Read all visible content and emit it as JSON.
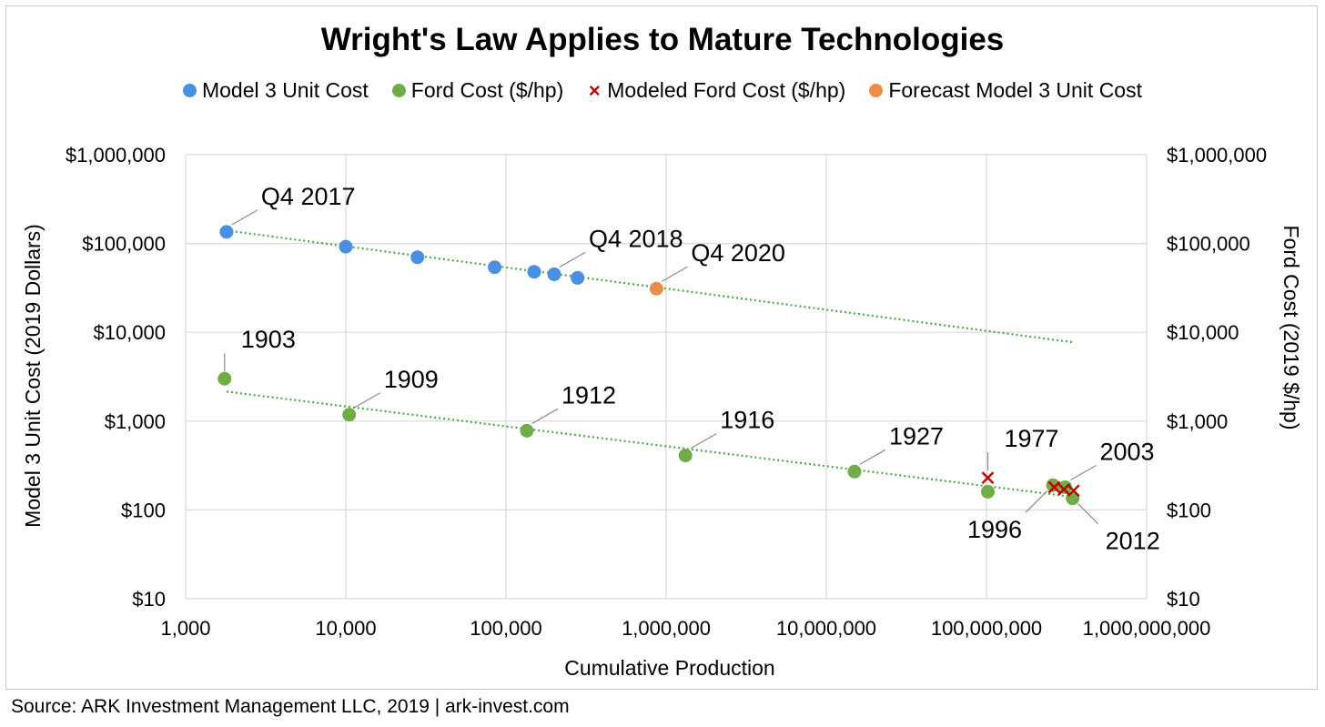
{
  "chart_data": {
    "type": "scatter",
    "title": "Wright's Law Applies to Mature Technologies",
    "xlabel": "Cumulative Production",
    "ylabel": "Model 3 Unit Cost (2019 Dollars)",
    "y2label": "Ford Cost (2019 $/hp)",
    "x_scale": "log",
    "y_scale": "log",
    "xlim": [
      1000,
      1000000000
    ],
    "ylim": [
      10,
      1000000
    ],
    "grid": true,
    "legend_position": "top",
    "x_ticks": [
      {
        "value": 1000,
        "label": "1,000"
      },
      {
        "value": 10000,
        "label": "10,000"
      },
      {
        "value": 100000,
        "label": "100,000"
      },
      {
        "value": 1000000,
        "label": "1,000,000"
      },
      {
        "value": 10000000,
        "label": "10,000,000"
      },
      {
        "value": 100000000,
        "label": "100,000,000"
      },
      {
        "value": 1000000000,
        "label": "1,000,000,000"
      }
    ],
    "y_ticks": [
      {
        "value": 10,
        "label": "$10"
      },
      {
        "value": 100,
        "label": "$100"
      },
      {
        "value": 1000,
        "label": "$1,000"
      },
      {
        "value": 10000,
        "label": "$10,000"
      },
      {
        "value": 100000,
        "label": "$100,000"
      },
      {
        "value": 1000000,
        "label": "$1,000,000"
      }
    ],
    "series": [
      {
        "name": "Model 3 Unit Cost",
        "color": "#4a90e2",
        "marker": "circle",
        "points": [
          {
            "x": 1800,
            "y": 135000
          },
          {
            "x": 10000,
            "y": 92000
          },
          {
            "x": 28000,
            "y": 70000
          },
          {
            "x": 85000,
            "y": 54000
          },
          {
            "x": 150000,
            "y": 48000
          },
          {
            "x": 200000,
            "y": 45000
          },
          {
            "x": 280000,
            "y": 41000
          }
        ]
      },
      {
        "name": "Ford Cost ($/hp)",
        "color": "#70ad47",
        "marker": "circle",
        "points": [
          {
            "x": 1750,
            "y": 3000
          },
          {
            "x": 10500,
            "y": 1180
          },
          {
            "x": 135000,
            "y": 780
          },
          {
            "x": 1320000,
            "y": 410
          },
          {
            "x": 15000000,
            "y": 270
          },
          {
            "x": 102000000,
            "y": 160
          },
          {
            "x": 260000000,
            "y": 190
          },
          {
            "x": 310000000,
            "y": 180
          },
          {
            "x": 345000000,
            "y": 135
          }
        ]
      },
      {
        "name": "Modeled Ford Cost ($/hp)",
        "color": "#c00000",
        "marker": "x",
        "points": [
          {
            "x": 102000000,
            "y": 230
          },
          {
            "x": 265000000,
            "y": 180
          },
          {
            "x": 305000000,
            "y": 170
          },
          {
            "x": 350000000,
            "y": 165
          }
        ]
      },
      {
        "name": "Forecast Model 3 Unit Cost",
        "color": "#ed8b4a",
        "marker": "circle",
        "points": [
          {
            "x": 870000,
            "y": 31000
          }
        ]
      }
    ],
    "trendlines": [
      {
        "color": "#4aa84a",
        "from": {
          "x": 1800,
          "y": 140000
        },
        "to": {
          "x": 350000000,
          "y": 7700
        }
      },
      {
        "color": "#4aa84a",
        "from": {
          "x": 1800,
          "y": 2150
        },
        "to": {
          "x": 350000000,
          "y": 140
        }
      }
    ],
    "annotations": [
      {
        "text": "Q4 2017",
        "point": {
          "x": 1800,
          "y": 135000
        },
        "dir": "ne"
      },
      {
        "text": "Q4 2018",
        "point": {
          "x": 200000,
          "y": 45000
        },
        "dir": "ne"
      },
      {
        "text": "Q4 2020",
        "point": {
          "x": 870000,
          "y": 31000
        },
        "dir": "ne"
      },
      {
        "text": "1903",
        "point": {
          "x": 1750,
          "y": 3000
        },
        "dir": "n"
      },
      {
        "text": "1909",
        "point": {
          "x": 10500,
          "y": 1180
        },
        "dir": "ne"
      },
      {
        "text": "1912",
        "point": {
          "x": 135000,
          "y": 780
        },
        "dir": "ne"
      },
      {
        "text": "1916",
        "point": {
          "x": 1320000,
          "y": 410
        },
        "dir": "ne"
      },
      {
        "text": "1927",
        "point": {
          "x": 15000000,
          "y": 270
        },
        "dir": "ne"
      },
      {
        "text": "1977",
        "point": {
          "x": 102000000,
          "y": 230
        },
        "dir": "n"
      },
      {
        "text": "2003",
        "point": {
          "x": 310000000,
          "y": 180
        },
        "dir": "ne"
      },
      {
        "text": "1996",
        "point": {
          "x": 260000000,
          "y": 190
        },
        "dir": "sw"
      },
      {
        "text": "2012",
        "point": {
          "x": 345000000,
          "y": 135
        },
        "dir": "se"
      }
    ]
  },
  "source": "Source: ARK Investment Management LLC, 2019 | ark-invest.com"
}
